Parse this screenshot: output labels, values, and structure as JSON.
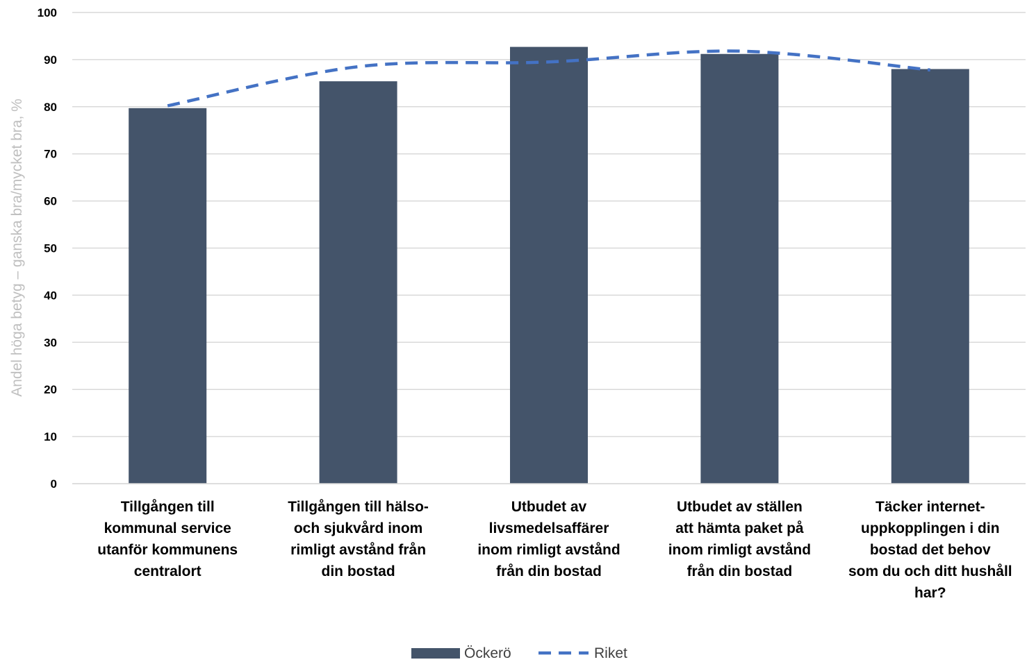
{
  "chart_data": {
    "type": "bar",
    "ylabel": "Andel höga betyg – ganska bra/mycket bra, %",
    "xlabel": "",
    "ylim": [
      0,
      100
    ],
    "yticks": [
      "0",
      "10",
      "20",
      "30",
      "40",
      "50",
      "60",
      "70",
      "80",
      "90",
      "100"
    ],
    "grid": true,
    "legend_position": "bottom",
    "categories": [
      [
        "Tillgången till",
        "kommunal service",
        "utanför kommunens",
        "centralort"
      ],
      [
        "Tillgången till hälso-",
        "och sjukvård inom",
        "rimligt avstånd från",
        "din bostad"
      ],
      [
        "Utbudet av",
        "livsmedelsaffärer",
        "inom rimligt avstånd",
        "från din bostad"
      ],
      [
        "Utbudet av ställen",
        "att hämta paket på",
        "inom rimligt avstånd",
        "från din bostad"
      ],
      [
        "Täcker internet-",
        "uppkopplingen i din",
        "bostad det behov",
        "som du och ditt hushåll",
        "har?"
      ]
    ],
    "series": [
      {
        "name": "Öckerö",
        "type": "bar",
        "color": "#44546a",
        "values": [
          79.7,
          85.4,
          92.7,
          91.2,
          88.0
        ]
      },
      {
        "name": "Riket",
        "type": "line",
        "style": "dashed",
        "color": "#4472c4",
        "values": [
          80.2,
          88.5,
          89.5,
          91.8,
          87.8
        ]
      }
    ]
  }
}
